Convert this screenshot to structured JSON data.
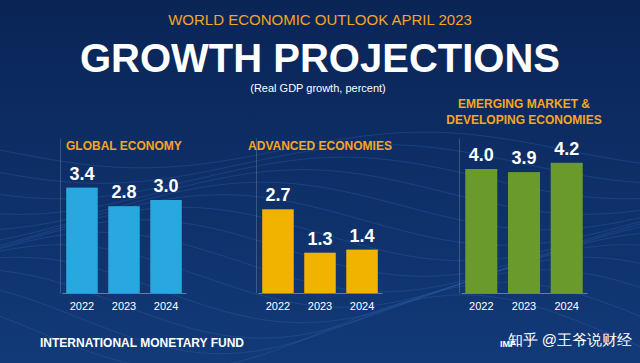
{
  "header": {
    "super_title": "WORLD ECONOMIC OUTLOOK APRIL 2023",
    "title": "GROWTH PROJECTIONS",
    "subtitle": "(Real GDP growth, percent)"
  },
  "footer": {
    "organization": "INTERNATIONAL MONETARY FUND",
    "logo": "IMF",
    "watermark": "知乎 @王爷说财经"
  },
  "chart_data": [
    {
      "type": "bar",
      "title": [
        "GLOBAL ECONOMY"
      ],
      "categories": [
        "2022",
        "2023",
        "2024"
      ],
      "values": [
        3.4,
        2.8,
        3.0
      ],
      "value_labels": [
        "3.4",
        "2.8",
        "3.0"
      ],
      "color": "#29a8e0",
      "ylim": [
        0,
        5
      ],
      "data_labels": true,
      "tick_labels": "x"
    },
    {
      "type": "bar",
      "title": [
        "ADVANCED ECONOMIES"
      ],
      "categories": [
        "2022",
        "2023",
        "2024"
      ],
      "values": [
        2.7,
        1.3,
        1.4
      ],
      "value_labels": [
        "2.7",
        "1.3",
        "1.4"
      ],
      "color": "#f2b300",
      "ylim": [
        0,
        5
      ],
      "data_labels": true,
      "tick_labels": "x"
    },
    {
      "type": "bar",
      "title": [
        "EMERGING MARKET &",
        "DEVELOPING ECONOMIES"
      ],
      "categories": [
        "2022",
        "2023",
        "2024"
      ],
      "values": [
        4.0,
        3.9,
        4.2
      ],
      "value_labels": [
        "4.0",
        "3.9",
        "4.2"
      ],
      "color": "#6a9a2c",
      "ylim": [
        0,
        5
      ],
      "data_labels": true,
      "tick_labels": "x"
    }
  ]
}
